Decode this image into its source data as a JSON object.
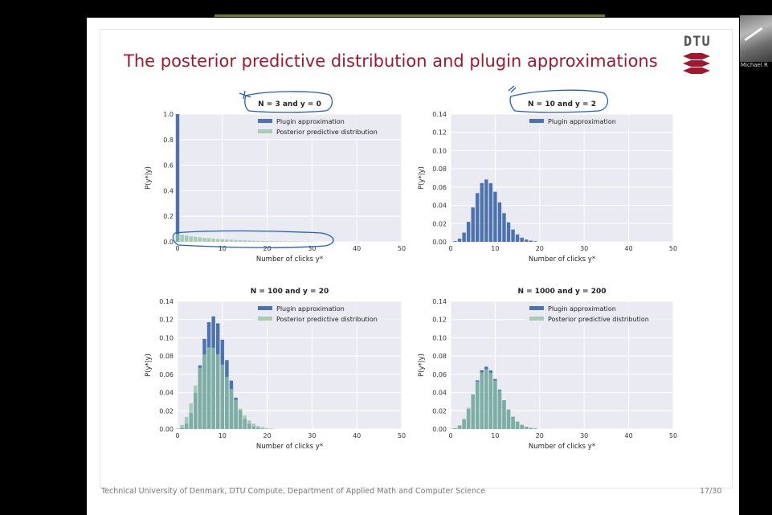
{
  "slide": {
    "title": "The posterior predictive distribution and plugin approximations",
    "footer": "Technical University of Denmark, DTU Compute, Department of Applied Math and Computer Science",
    "page": "17/30",
    "logo_text": "DTU",
    "brand_color": "#a3172e"
  },
  "webcam": {
    "name": "Michael R"
  },
  "chart_data": [
    {
      "type": "bar",
      "title": "N = 3 and y = 0",
      "xlabel": "Number of clicks y*",
      "ylabel": "P(y*|y)",
      "xlim": [
        0,
        50
      ],
      "ylim": [
        0,
        1.0
      ],
      "yticks": [
        0.0,
        0.2,
        0.4,
        0.6,
        0.8,
        1.0
      ],
      "xticks": [
        0,
        10,
        20,
        30,
        40,
        50
      ],
      "legend": "top-right",
      "series": [
        {
          "name": "Plugin approximation",
          "color": "#4c72b0",
          "values": [
            1.0
          ]
        },
        {
          "name": "Posterior predictive distribution",
          "color": "#8ec3a0",
          "values": [
            0.062,
            0.055,
            0.049,
            0.044,
            0.039,
            0.035,
            0.031,
            0.028,
            0.025,
            0.022,
            0.02,
            0.018,
            0.016,
            0.014,
            0.013,
            0.012,
            0.01,
            0.009,
            0.008,
            0.007,
            0.006,
            0.006,
            0.005,
            0.004,
            0.004,
            0.003,
            0.003,
            0.003,
            0.002,
            0.002,
            0.002
          ]
        }
      ]
    },
    {
      "type": "bar",
      "title": "N = 10 and y = 2",
      "xlabel": "Number of clicks y*",
      "ylabel": "P(y*|y)",
      "xlim": [
        0,
        50
      ],
      "ylim": [
        0,
        0.14
      ],
      "yticks": [
        0.0,
        0.02,
        0.04,
        0.06,
        0.08,
        0.1,
        0.12,
        0.14
      ],
      "xticks": [
        0,
        10,
        20,
        30,
        40,
        50
      ],
      "legend": "top-right",
      "series": [
        {
          "name": "Plugin approximation",
          "color": "#4c72b0",
          "values": [
            0.0001,
            0.0008,
            0.0035,
            0.0101,
            0.0219,
            0.0377,
            0.0534,
            0.0645,
            0.0683,
            0.0642,
            0.0549,
            0.0432,
            0.0314,
            0.0213,
            0.0135,
            0.0081,
            0.0046,
            0.0025,
            0.0013,
            0.0006
          ]
        }
      ]
    },
    {
      "type": "bar",
      "title": "N = 100 and y = 20",
      "xlabel": "Number of clicks y*",
      "ylabel": "P(y*|y)",
      "xlim": [
        0,
        50
      ],
      "ylim": [
        0,
        0.14
      ],
      "yticks": [
        0.0,
        0.02,
        0.04,
        0.06,
        0.08,
        0.1,
        0.12,
        0.14
      ],
      "xticks": [
        0,
        10,
        20,
        30,
        40,
        50
      ],
      "legend": "top-right",
      "series": [
        {
          "name": "Plugin approximation",
          "color": "#4c72b0",
          "values": [
            0.0001,
            0.0012,
            0.0058,
            0.0175,
            0.0397,
            0.0698,
            0.0988,
            0.1171,
            0.1235,
            0.1158,
            0.0979,
            0.0755,
            0.0531,
            0.0343,
            0.0205,
            0.0112,
            0.0058,
            0.0028,
            0.0013,
            0.0005
          ]
        },
        {
          "name": "Posterior predictive distribution",
          "color": "#8ec3a0",
          "values": [
            0.0008,
            0.0045,
            0.0133,
            0.0282,
            0.0476,
            0.0671,
            0.0819,
            0.0895,
            0.0891,
            0.082,
            0.0706,
            0.0573,
            0.044,
            0.0321,
            0.0223,
            0.0149,
            0.0095,
            0.0058,
            0.0035,
            0.002,
            0.0011,
            0.0006
          ]
        }
      ]
    },
    {
      "type": "bar",
      "title": "N = 1000 and y = 200",
      "xlabel": "Number of clicks y*",
      "ylabel": "P(y*|y)",
      "xlim": [
        0,
        50
      ],
      "ylim": [
        0,
        0.14
      ],
      "yticks": [
        0.0,
        0.02,
        0.04,
        0.06,
        0.08,
        0.1,
        0.12,
        0.14
      ],
      "xticks": [
        0,
        10,
        20,
        30,
        40,
        50
      ],
      "legend": "top-right",
      "series": [
        {
          "name": "Plugin approximation",
          "color": "#4c72b0",
          "values": [
            0.0001,
            0.0008,
            0.0035,
            0.0101,
            0.0219,
            0.0377,
            0.0534,
            0.0645,
            0.0683,
            0.0642,
            0.0549,
            0.0432,
            0.0314,
            0.0213,
            0.0135,
            0.0081,
            0.0046,
            0.0025,
            0.0013,
            0.0006
          ]
        },
        {
          "name": "Posterior predictive distribution",
          "color": "#8ec3a0",
          "values": [
            0.0002,
            0.0011,
            0.0043,
            0.0116,
            0.0234,
            0.0382,
            0.0522,
            0.0621,
            0.0654,
            0.0618,
            0.0533,
            0.0423,
            0.0311,
            0.0213,
            0.0137,
            0.0083,
            0.0048,
            0.0027,
            0.0014,
            0.0007
          ]
        }
      ]
    }
  ]
}
